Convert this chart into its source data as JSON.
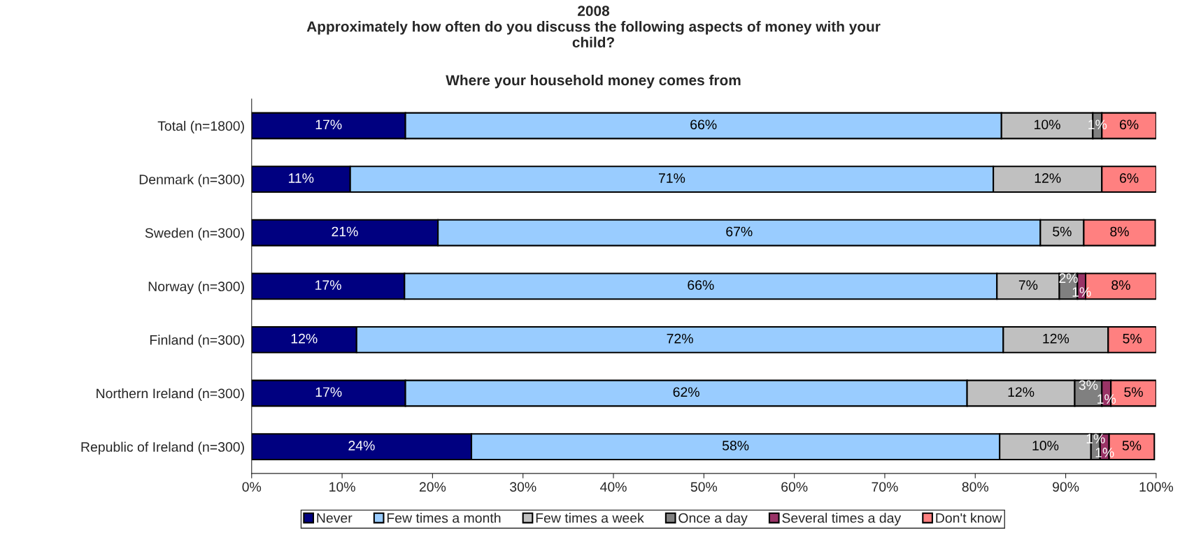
{
  "chart_data": {
    "type": "bar",
    "orientation": "horizontal",
    "stacked": true,
    "title": "2008\nApproximately how often do you discuss the following aspects of money with your\nchild?",
    "subtitle": "Where your household money comes from",
    "categories": [
      "Total (n=1800)",
      "Denmark (n=300)",
      "Sweden (n=300)",
      "Norway (n=300)",
      "Finland (n=300)",
      "Northern Ireland (n=300)",
      "Republic of Ireland (n=300)"
    ],
    "series": [
      {
        "name": "Never",
        "color": "#000080",
        "values": [
          17.0,
          10.9,
          20.6,
          16.9,
          11.6,
          17.0,
          24.3
        ],
        "value_labels": [
          "17%",
          "11%",
          "21%",
          "17%",
          "12%",
          "17%",
          "24%"
        ]
      },
      {
        "name": "Few times a month",
        "color": "#99ccff",
        "values": [
          65.9,
          71.1,
          66.6,
          65.5,
          71.5,
          62.1,
          58.4
        ],
        "value_labels": [
          "66%",
          "71%",
          "67%",
          "66%",
          "72%",
          "62%",
          "58%"
        ]
      },
      {
        "name": "Few times a week",
        "color": "#c0c0c0",
        "values": [
          10.1,
          12.0,
          4.8,
          6.9,
          11.6,
          11.9,
          10.1
        ],
        "value_labels": [
          "10%",
          "12%",
          "5%",
          "7%",
          "12%",
          "12%",
          "10%"
        ]
      },
      {
        "name": "Once a day",
        "color": "#808080",
        "values": [
          1.0,
          null,
          null,
          2.0,
          null,
          3.0,
          1.0
        ],
        "value_labels": [
          "1%",
          null,
          null,
          "2%",
          null,
          "3%",
          "1%"
        ]
      },
      {
        "name": "Several times a day",
        "color": "#993366",
        "values": [
          null,
          null,
          null,
          0.9,
          null,
          1.0,
          1.0
        ],
        "value_labels": [
          null,
          null,
          null,
          "1%",
          null,
          "1%",
          "1%"
        ]
      },
      {
        "name": "Don't know",
        "color": "#ff8080",
        "values": [
          6.0,
          6.0,
          7.9,
          7.8,
          5.3,
          5.0,
          5.0
        ],
        "value_labels": [
          "6%",
          "6%",
          "8%",
          "8%",
          "5%",
          "5%",
          "5%"
        ]
      }
    ],
    "xlim": [
      0,
      100
    ],
    "xticks": [
      {
        "value": 0,
        "label": "0%"
      },
      {
        "value": 10,
        "label": "10%"
      },
      {
        "value": 20,
        "label": "20%"
      },
      {
        "value": 30,
        "label": "30%"
      },
      {
        "value": 40,
        "label": "40%"
      },
      {
        "value": 50,
        "label": "50%"
      },
      {
        "value": 60,
        "label": "60%"
      },
      {
        "value": 70,
        "label": "70%"
      },
      {
        "value": 80,
        "label": "80%"
      },
      {
        "value": 90,
        "label": "90%"
      },
      {
        "value": 100,
        "label": "100%"
      }
    ],
    "grid": false,
    "legend": "bottom"
  }
}
